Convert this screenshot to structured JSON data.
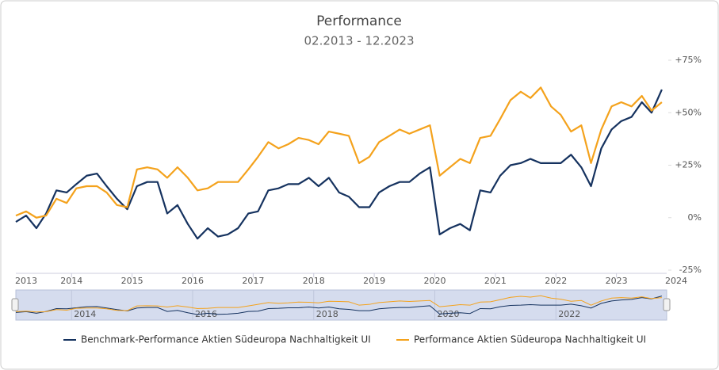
{
  "chart_data": {
    "type": "line",
    "title": "Performance",
    "subtitle": "02.2013 - 12.2023",
    "x": [
      2013.08,
      2013.25,
      2013.42,
      2013.58,
      2013.75,
      2013.92,
      2014.08,
      2014.25,
      2014.42,
      2014.58,
      2014.75,
      2014.92,
      2015.08,
      2015.25,
      2015.42,
      2015.58,
      2015.75,
      2015.92,
      2016.08,
      2016.25,
      2016.42,
      2016.58,
      2016.75,
      2016.92,
      2017.08,
      2017.25,
      2017.42,
      2017.58,
      2017.75,
      2017.92,
      2018.08,
      2018.25,
      2018.42,
      2018.58,
      2018.75,
      2018.92,
      2019.08,
      2019.25,
      2019.42,
      2019.58,
      2019.75,
      2019.92,
      2020.08,
      2020.25,
      2020.42,
      2020.58,
      2020.75,
      2020.92,
      2021.08,
      2021.25,
      2021.42,
      2021.58,
      2021.75,
      2021.92,
      2022.08,
      2022.25,
      2022.42,
      2022.58,
      2022.75,
      2022.92,
      2023.08,
      2023.25,
      2023.42,
      2023.58,
      2023.75
    ],
    "series": [
      {
        "name": "Benchmark-Performance Aktien Südeuropa Nachhaltigkeit UI",
        "color": "#15325f",
        "values": [
          -2,
          1,
          -5,
          2,
          13,
          12,
          16,
          20,
          21,
          15,
          9,
          4,
          15,
          17,
          17,
          2,
          6,
          -3,
          -10,
          -5,
          -9,
          -8,
          -5,
          2,
          3,
          13,
          14,
          16,
          16,
          19,
          15,
          19,
          12,
          10,
          5,
          5,
          12,
          15,
          17,
          17,
          21,
          24,
          -8,
          -5,
          -3,
          -6,
          13,
          12,
          20,
          25,
          26,
          28,
          26,
          26,
          26,
          30,
          24,
          15,
          33,
          42,
          46,
          48,
          55,
          50,
          61
        ]
      },
      {
        "name": "Performance Aktien Südeuropa Nachhaltigkeit UI",
        "color": "#f4a21c",
        "values": [
          1,
          3,
          0,
          1,
          9,
          7,
          14,
          15,
          15,
          12,
          6,
          5,
          23,
          24,
          23,
          19,
          24,
          19,
          13,
          14,
          17,
          17,
          17,
          23,
          29,
          36,
          33,
          35,
          38,
          37,
          35,
          41,
          40,
          39,
          26,
          29,
          36,
          39,
          42,
          40,
          42,
          44,
          20,
          24,
          28,
          26,
          38,
          39,
          47,
          56,
          60,
          57,
          62,
          53,
          49,
          41,
          44,
          26,
          42,
          53,
          55,
          53,
          58,
          51,
          55
        ]
      }
    ],
    "xlim": [
      2013.08,
      2023.83
    ],
    "xticks": [
      2013,
      2014,
      2015,
      2016,
      2017,
      2018,
      2019,
      2020,
      2021,
      2022,
      2023,
      2024
    ],
    "ylim": [
      -25,
      75
    ],
    "yticks": [
      {
        "value": 75,
        "label": "+75%"
      },
      {
        "value": 50,
        "label": "+50%"
      },
      {
        "value": 25,
        "label": "+25%"
      },
      {
        "value": 0,
        "label": "0%"
      },
      {
        "value": -25,
        "label": "-25%"
      }
    ],
    "legend": "bottom",
    "navigator": {
      "xticks": [
        2014,
        2016,
        2018,
        2020,
        2022
      ]
    }
  }
}
